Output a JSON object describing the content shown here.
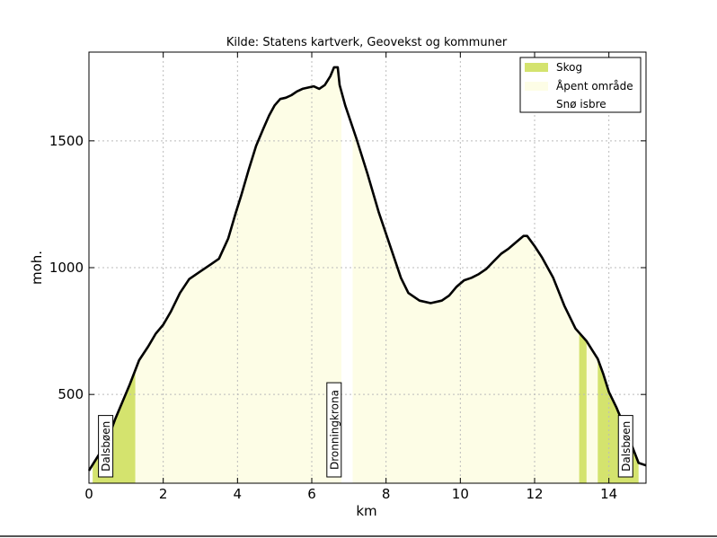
{
  "chart_data": {
    "type": "area",
    "title": "Kilde: Statens kartverk, Geovekst og kommuner",
    "xlabel": "km",
    "ylabel": "moh.",
    "xlim": [
      0,
      15
    ],
    "ylim": [
      150,
      1850
    ],
    "x_ticks": [
      0,
      2,
      4,
      6,
      8,
      10,
      12,
      14
    ],
    "y_ticks": [
      500,
      1000,
      1500
    ],
    "grid": true,
    "legend_position": "top-right",
    "legend": [
      {
        "label": "Skog",
        "color": "#d4e36e"
      },
      {
        "label": "Åpent område",
        "color": "#fdfde6"
      },
      {
        "label": "Snø isbre",
        "color": "#ffffff"
      }
    ],
    "elevation_profile": {
      "x": [
        0,
        0.15,
        0.3,
        0.5,
        0.7,
        0.9,
        1.1,
        1.35,
        1.6,
        1.8,
        2.0,
        2.2,
        2.45,
        2.7,
        3.0,
        3.3,
        3.5,
        3.75,
        3.95,
        4.1,
        4.3,
        4.5,
        4.7,
        4.85,
        5.0,
        5.15,
        5.3,
        5.45,
        5.6,
        5.75,
        5.9,
        6.05,
        6.2,
        6.35,
        6.5,
        6.6,
        6.7,
        6.75,
        6.9,
        7.2,
        7.5,
        7.8,
        8.1,
        8.4,
        8.6,
        8.9,
        9.2,
        9.5,
        9.7,
        9.9,
        10.1,
        10.3,
        10.5,
        10.7,
        10.9,
        11.1,
        11.3,
        11.5,
        11.7,
        11.8,
        12.0,
        12.2,
        12.5,
        12.8,
        13.1,
        13.4,
        13.55,
        13.7,
        13.85,
        14.0,
        14.2,
        14.4,
        14.6,
        14.8,
        15.0
      ],
      "y": [
        200,
        235,
        270,
        320,
        400,
        470,
        540,
        635,
        690,
        740,
        775,
        825,
        900,
        955,
        985,
        1015,
        1035,
        1115,
        1215,
        1285,
        1385,
        1480,
        1550,
        1600,
        1640,
        1665,
        1670,
        1680,
        1695,
        1705,
        1710,
        1715,
        1705,
        1720,
        1755,
        1790,
        1790,
        1720,
        1640,
        1510,
        1370,
        1220,
        1090,
        960,
        900,
        870,
        860,
        870,
        890,
        925,
        950,
        960,
        975,
        995,
        1025,
        1055,
        1075,
        1100,
        1125,
        1125,
        1085,
        1040,
        960,
        850,
        760,
        710,
        675,
        640,
        580,
        510,
        450,
        380,
        305,
        230,
        220
      ]
    },
    "land_cover": [
      {
        "type": "Skog",
        "from": 0.1,
        "to": 1.25
      },
      {
        "type": "Åpent område",
        "from": 1.25,
        "to": 6.8
      },
      {
        "type": "Snø isbre",
        "from": 6.8,
        "to": 7.1
      },
      {
        "type": "Åpent område",
        "from": 7.1,
        "to": 13.2
      },
      {
        "type": "Skog",
        "from": 13.2,
        "to": 13.4
      },
      {
        "type": "Åpent område",
        "from": 13.4,
        "to": 13.7
      },
      {
        "type": "Skog",
        "from": 13.7,
        "to": 14.8
      }
    ],
    "annotations": [
      {
        "label": "Dalsbøen",
        "x": 0.45
      },
      {
        "label": "Dronningkrona",
        "x": 6.6
      },
      {
        "label": "Dalsbøen",
        "x": 14.45
      }
    ]
  }
}
